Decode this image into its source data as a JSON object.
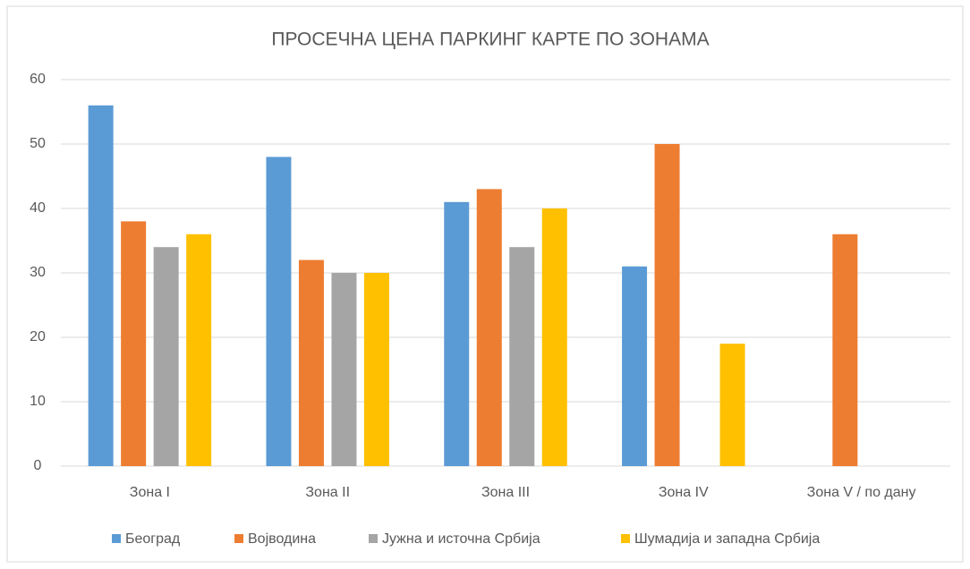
{
  "chart_data": {
    "type": "bar",
    "title": "ПРОСЕЧНА ЦЕНА ПАРКИНГ КАРТЕ ПО ЗОНАМА",
    "categories": [
      "Зона I",
      "Зона II",
      "Зона III",
      "Зона IV",
      "Зона V / по дану"
    ],
    "series": [
      {
        "name": "Београд",
        "color": "#5b9bd5",
        "values": [
          56,
          48,
          41,
          31,
          null
        ]
      },
      {
        "name": "Војводина",
        "color": "#ed7d31",
        "values": [
          38,
          32,
          43,
          50,
          36
        ]
      },
      {
        "name": "Јужна и источна Србија",
        "color": "#a5a5a5",
        "values": [
          34,
          30,
          34,
          null,
          null
        ]
      },
      {
        "name": "Шумадија и западна Србија",
        "color": "#ffc000",
        "values": [
          36,
          30,
          40,
          19,
          null
        ]
      }
    ],
    "ylim": [
      0,
      60
    ],
    "yticks": [
      0,
      10,
      20,
      30,
      40,
      50,
      60
    ],
    "grid": true,
    "legend": "bottom"
  }
}
